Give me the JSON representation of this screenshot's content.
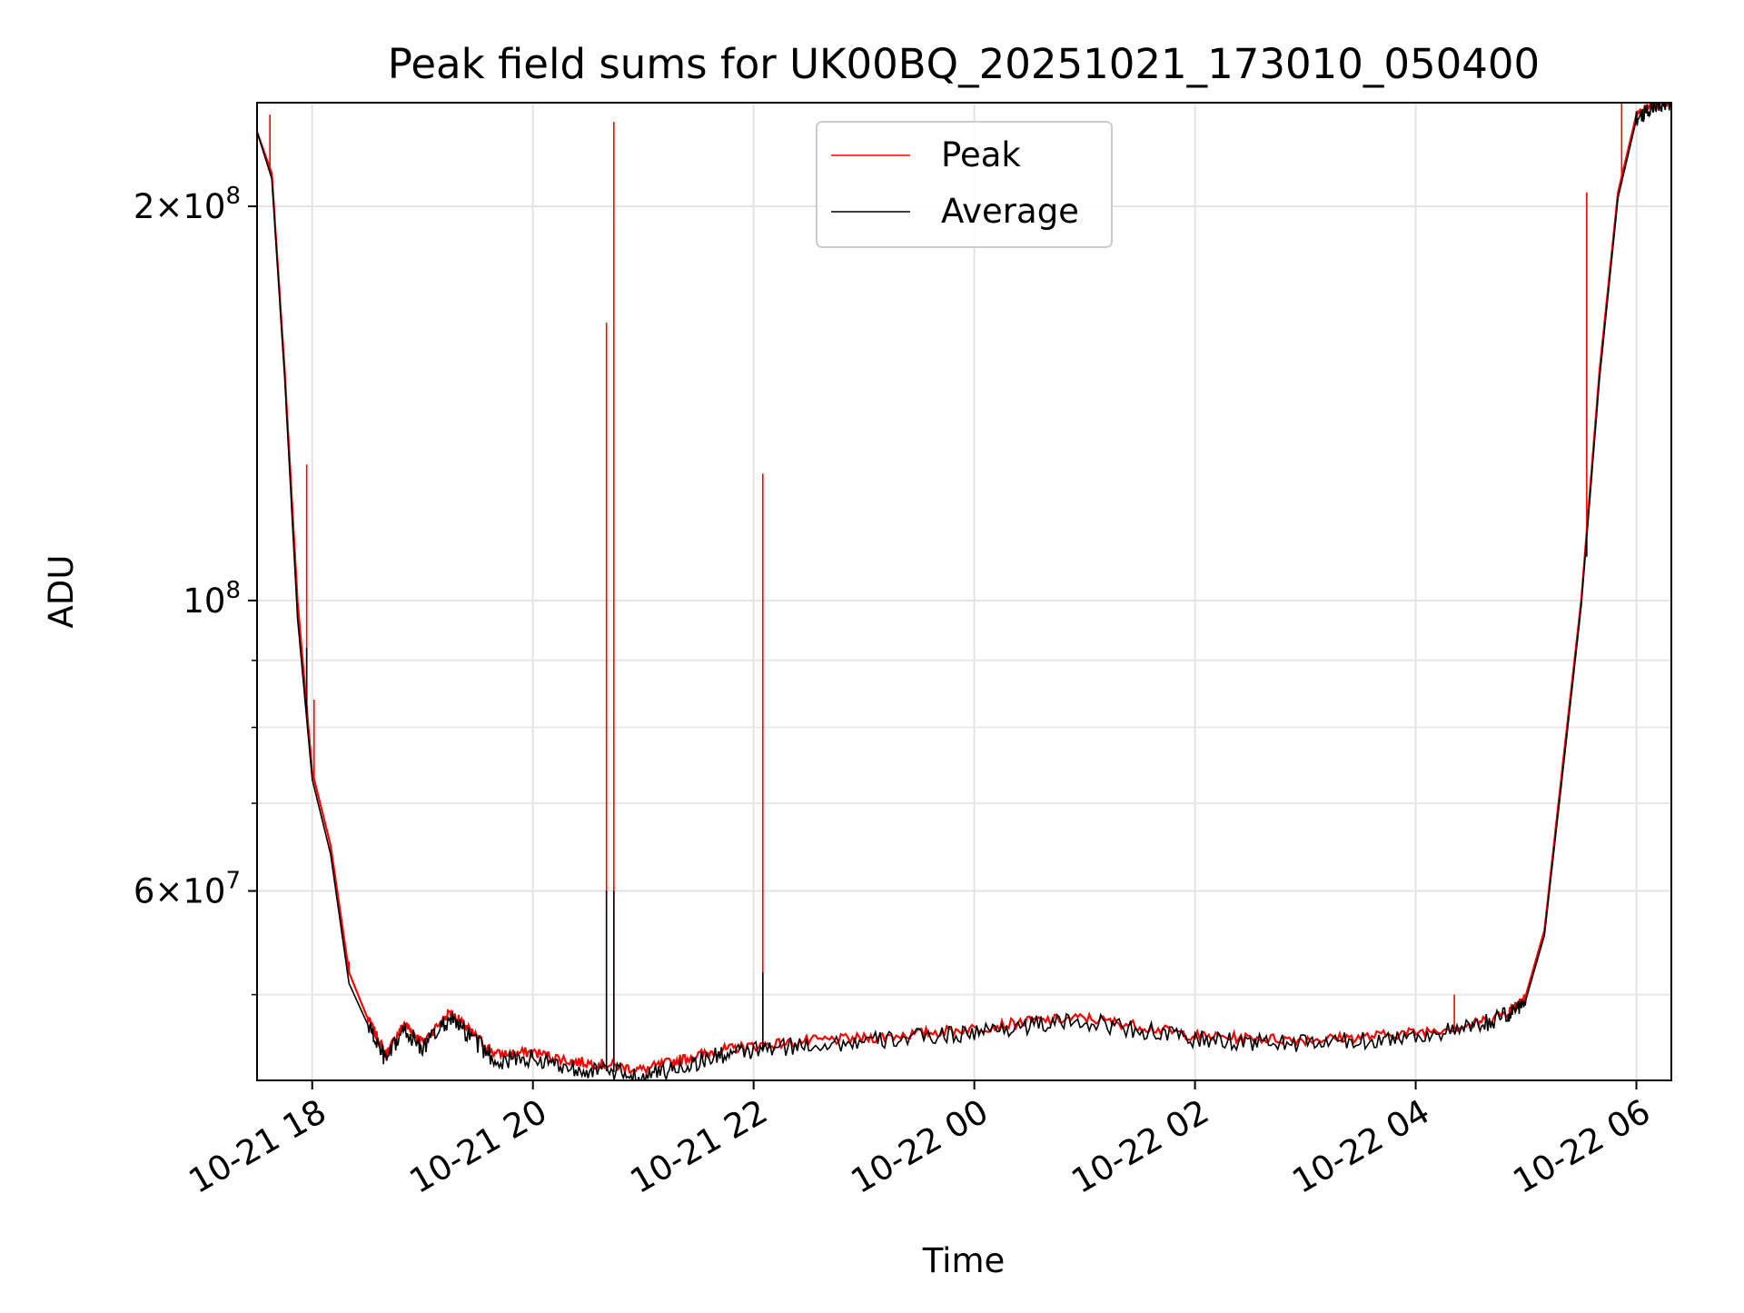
{
  "chart_data": {
    "type": "line",
    "title": "Peak field sums for UK00BQ_20251021_173010_050400",
    "xlabel": "Time",
    "ylabel": "ADU",
    "yscale": "log",
    "ylim": [
      43000000,
      240000000
    ],
    "xlim": [
      "2025-10-21 17:30",
      "2025-10-22 06:19"
    ],
    "grid": true,
    "legend": {
      "position": "top-center",
      "entries": [
        "Peak",
        "Average"
      ]
    },
    "x_ticks": [
      {
        "label": "10-21 18",
        "time": "2025-10-21 18:00"
      },
      {
        "label": "10-21 20",
        "time": "2025-10-21 20:00"
      },
      {
        "label": "10-21 22",
        "time": "2025-10-21 22:00"
      },
      {
        "label": "10-22 00",
        "time": "2025-10-22 00:00"
      },
      {
        "label": "10-22 02",
        "time": "2025-10-22 02:00"
      },
      {
        "label": "10-22 04",
        "time": "2025-10-22 04:00"
      },
      {
        "label": "10-22 06",
        "time": "2025-10-22 06:00"
      }
    ],
    "y_ticks": [
      {
        "value": 200000000,
        "mant": "2",
        "exp": "8"
      },
      {
        "value": 100000000,
        "mant": "",
        "exp": "8"
      },
      {
        "value": 60000000,
        "mant": "6",
        "exp": "7"
      }
    ],
    "y_minor_ticks": [
      50000000,
      70000000,
      80000000,
      90000000
    ],
    "series": [
      {
        "name": "Peak",
        "color": "#ff0000",
        "x": [
          "2025-10-21 17:30",
          "2025-10-21 17:38",
          "2025-10-21 17:45",
          "2025-10-21 17:52",
          "2025-10-21 18:00",
          "2025-10-21 18:10",
          "2025-10-21 18:20",
          "2025-10-21 18:30",
          "2025-10-21 18:40",
          "2025-10-21 18:50",
          "2025-10-21 19:00",
          "2025-10-21 19:15",
          "2025-10-21 19:25",
          "2025-10-21 19:40",
          "2025-10-21 20:00",
          "2025-10-21 20:20",
          "2025-10-21 20:40",
          "2025-10-21 21:00",
          "2025-10-21 21:20",
          "2025-10-21 21:40",
          "2025-10-21 22:00",
          "2025-10-21 22:30",
          "2025-10-21 23:00",
          "2025-10-21 23:30",
          "2025-10-22 00:00",
          "2025-10-22 00:30",
          "2025-10-22 01:00",
          "2025-10-22 01:30",
          "2025-10-22 02:00",
          "2025-10-22 02:30",
          "2025-10-22 03:00",
          "2025-10-22 03:30",
          "2025-10-22 04:00",
          "2025-10-22 04:30",
          "2025-10-22 04:50",
          "2025-10-22 05:00",
          "2025-10-22 05:10",
          "2025-10-22 05:20",
          "2025-10-22 05:30",
          "2025-10-22 05:40",
          "2025-10-22 05:50",
          "2025-10-22 06:00",
          "2025-10-22 06:10",
          "2025-10-22 06:19"
        ],
        "y": [
          228000000,
          212000000,
          150000000,
          100000000,
          74000000,
          65000000,
          52000000,
          48000000,
          45000000,
          47500000,
          46000000,
          48500000,
          47000000,
          45000000,
          45200000,
          44500000,
          44200000,
          43800000,
          44600000,
          45300000,
          45700000,
          46100000,
          46300000,
          46700000,
          47100000,
          47700000,
          48000000,
          47300000,
          46500000,
          46300000,
          46200000,
          46400000,
          46800000,
          47400000,
          48500000,
          50000000,
          56000000,
          75000000,
          100000000,
          150000000,
          205000000,
          235000000,
          240000000,
          240000000
        ],
        "spikes": [
          {
            "time": "2025-10-21 17:37",
            "value": 235000000
          },
          {
            "time": "2025-10-21 17:57",
            "value": 127000000
          },
          {
            "time": "2025-10-21 18:01",
            "value": 84000000
          },
          {
            "time": "2025-10-21 18:20",
            "value": 53000000
          },
          {
            "time": "2025-10-21 20:40",
            "value": 163000000
          },
          {
            "time": "2025-10-21 20:44",
            "value": 232000000
          },
          {
            "time": "2025-10-21 22:05",
            "value": 125000000
          },
          {
            "time": "2025-10-22 04:21",
            "value": 50000000
          },
          {
            "time": "2025-10-22 05:33",
            "value": 205000000
          },
          {
            "time": "2025-10-22 05:52",
            "value": 240000000
          }
        ]
      },
      {
        "name": "Average",
        "color": "#000000",
        "x": [
          "2025-10-21 17:30",
          "2025-10-21 17:38",
          "2025-10-21 17:45",
          "2025-10-21 17:52",
          "2025-10-21 18:00",
          "2025-10-21 18:10",
          "2025-10-21 18:20",
          "2025-10-21 18:30",
          "2025-10-21 18:40",
          "2025-10-21 18:50",
          "2025-10-21 19:00",
          "2025-10-21 19:15",
          "2025-10-21 19:25",
          "2025-10-21 19:40",
          "2025-10-21 20:00",
          "2025-10-21 20:20",
          "2025-10-21 20:40",
          "2025-10-21 21:00",
          "2025-10-21 21:20",
          "2025-10-21 21:40",
          "2025-10-21 22:00",
          "2025-10-21 22:30",
          "2025-10-21 23:00",
          "2025-10-21 23:30",
          "2025-10-22 00:00",
          "2025-10-22 00:30",
          "2025-10-22 01:00",
          "2025-10-22 01:30",
          "2025-10-22 02:00",
          "2025-10-22 02:30",
          "2025-10-22 03:00",
          "2025-10-22 03:30",
          "2025-10-22 04:00",
          "2025-10-22 04:30",
          "2025-10-22 04:50",
          "2025-10-22 05:00",
          "2025-10-22 05:10",
          "2025-10-22 05:20",
          "2025-10-22 05:30",
          "2025-10-22 05:40",
          "2025-10-22 05:50",
          "2025-10-22 06:00",
          "2025-10-22 06:10",
          "2025-10-22 06:19"
        ],
        "y": [
          228000000,
          210000000,
          148000000,
          97000000,
          73000000,
          64000000,
          51000000,
          47500000,
          44500000,
          47000000,
          45500000,
          48000000,
          46500000,
          44500000,
          44700000,
          44000000,
          43700000,
          43300000,
          44000000,
          44900000,
          45300000,
          45800000,
          46000000,
          46400000,
          46800000,
          47400000,
          47700000,
          47000000,
          46200000,
          46000000,
          45900000,
          46100000,
          46500000,
          47100000,
          48200000,
          49600000,
          55500000,
          74000000,
          99000000,
          148000000,
          203000000,
          233000000,
          240000000,
          240000000
        ],
        "spikes": [
          {
            "time": "2025-10-21 17:57",
            "value": 92000000
          },
          {
            "time": "2025-10-21 20:40",
            "value": 60000000
          },
          {
            "time": "2025-10-21 20:44",
            "value": 60000000
          },
          {
            "time": "2025-10-21 22:05",
            "value": 52000000
          },
          {
            "time": "2025-10-22 05:33",
            "value": 108000000
          }
        ]
      }
    ]
  }
}
